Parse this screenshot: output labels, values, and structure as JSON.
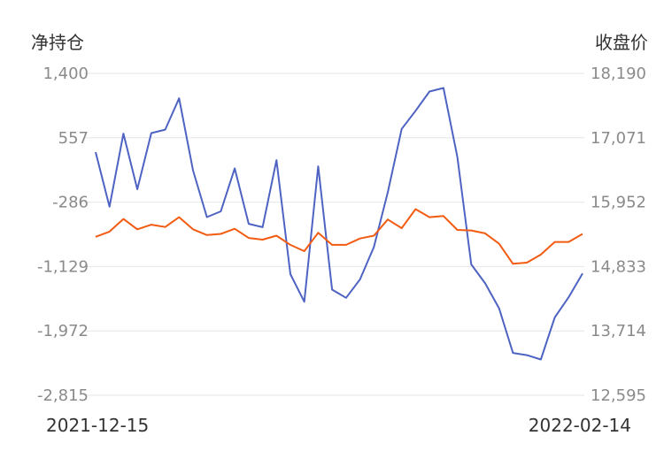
{
  "chart_data": {
    "type": "line",
    "left_axis_title": "净持仓",
    "right_axis_title": "收盘价",
    "left_ticks": [
      "1,400",
      "557",
      "-286",
      "-1,129",
      "-1,972",
      "-2,815"
    ],
    "right_ticks": [
      "18,190",
      "17,071",
      "15,952",
      "14,833",
      "13,714",
      "12,595"
    ],
    "left_ylim": [
      -2815,
      1400
    ],
    "right_ylim": [
      12595,
      18190
    ],
    "x_start_label": "2021-12-15",
    "x_end_label": "2022-02-14",
    "grid": true,
    "series": [
      {
        "axis": "left",
        "color": "#4e63c2",
        "values": [
          369,
          -345,
          612,
          -117,
          618,
          663,
          1074,
          131,
          -482,
          -406,
          156,
          -570,
          -614,
          264,
          -1229,
          -1590,
          183,
          -1431,
          -1539,
          -1298,
          -874,
          -158,
          673,
          910,
          1163,
          1209,
          305,
          -1101,
          -1349,
          -1675,
          -2260,
          -2289,
          -2346,
          -1796,
          -1531,
          -1219
        ]
      },
      {
        "axis": "right",
        "color": "#f25b12",
        "values": [
          15350,
          15440,
          15660,
          15480,
          15560,
          15520,
          15690,
          15480,
          15380,
          15400,
          15490,
          15330,
          15300,
          15370,
          15210,
          15100,
          15420,
          15210,
          15210,
          15320,
          15370,
          15650,
          15500,
          15830,
          15690,
          15710,
          15470,
          15460,
          15410,
          15230,
          14880,
          14900,
          15040,
          15260,
          15260,
          15400
        ]
      }
    ]
  }
}
